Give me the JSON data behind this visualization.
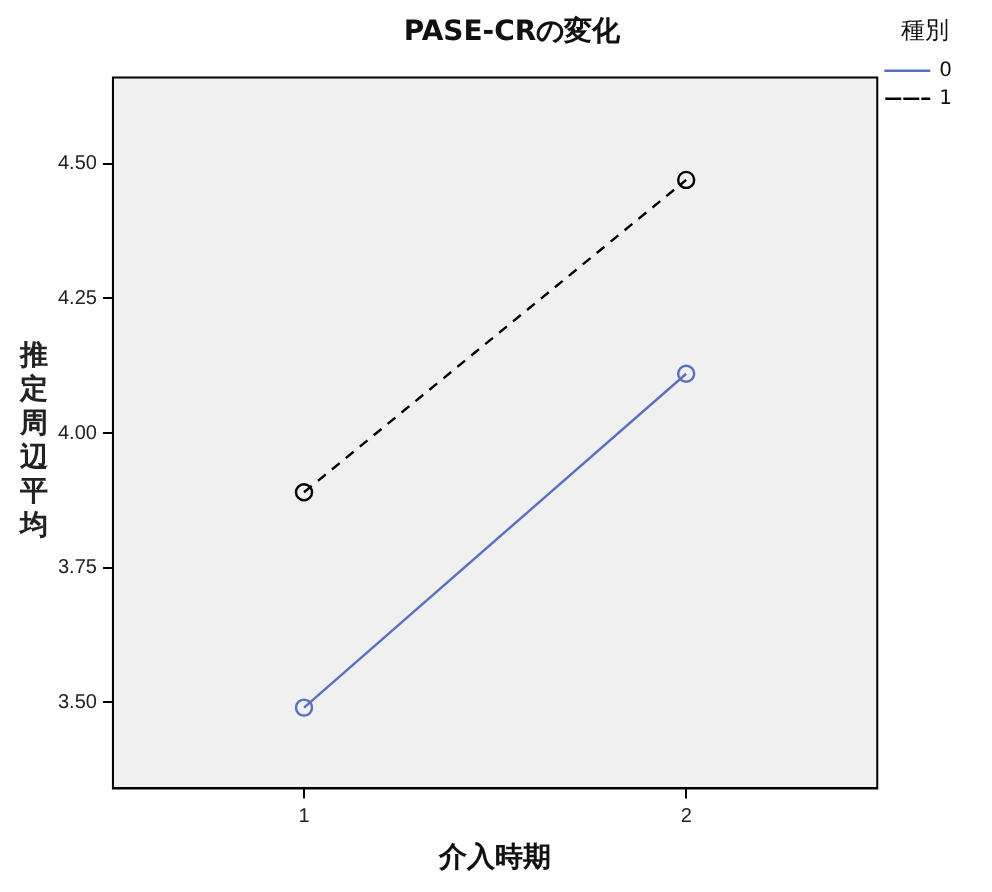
{
  "chart_data": {
    "type": "line",
    "title": "PASE-CRの変化",
    "xlabel": "介入時期",
    "ylabel": "推定周辺平均",
    "legend_title": "種別",
    "categories": [
      "1",
      "2"
    ],
    "series": [
      {
        "name": "0",
        "color": "#5b6fbf",
        "values": [
          3.49,
          4.11
        ],
        "line_style": "solid"
      },
      {
        "name": "1",
        "color": "#000000",
        "values": [
          3.89,
          4.47
        ],
        "line_style": "dashed"
      }
    ],
    "ylim": [
      3.34,
      4.66
    ],
    "yticks": [
      {
        "value": 3.5,
        "label": "3.50"
      },
      {
        "value": 3.75,
        "label": "3.75"
      },
      {
        "value": 4.0,
        "label": "4.00"
      },
      {
        "value": 4.25,
        "label": "4.25"
      },
      {
        "value": 4.5,
        "label": "4.50"
      }
    ],
    "grid": false,
    "legend": "top right",
    "marker": "circle"
  }
}
